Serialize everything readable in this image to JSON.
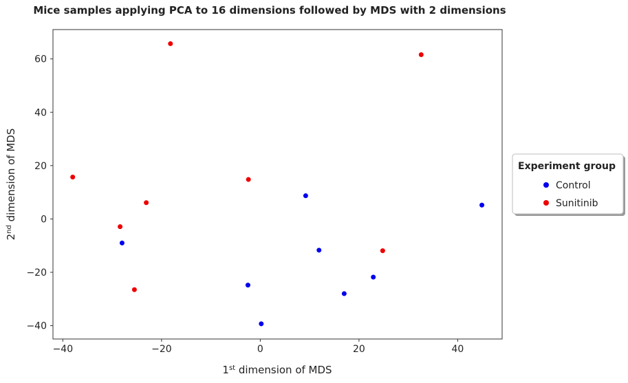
{
  "chart_data": {
    "type": "scatter",
    "title": "Mice samples applying PCA to 16 dimensions followed by MDS with 2 dimensions",
    "xlabel": {
      "prefix": "1",
      "sup": "st",
      "suffix": " dimension of MDS"
    },
    "ylabel": {
      "prefix": "2",
      "sup": "nd",
      "suffix": " dimension of MDS"
    },
    "xlim": [
      -42,
      49
    ],
    "ylim": [
      -45,
      71
    ],
    "xticks": [
      -40,
      -20,
      0,
      20,
      40
    ],
    "yticks": [
      -40,
      -20,
      0,
      20,
      40,
      60
    ],
    "xtick_labels": [
      "−40",
      "−20",
      "0",
      "20",
      "40"
    ],
    "ytick_labels": [
      "−40",
      "−20",
      "0",
      "20",
      "40",
      "60"
    ],
    "grid": false,
    "legend": {
      "title": "Experiment group",
      "placement": "center-right outside plot"
    },
    "series": [
      {
        "name": "Control",
        "color": "#0000ee",
        "points": [
          {
            "x": -28.0,
            "y": -9.0
          },
          {
            "x": -2.5,
            "y": -24.8
          },
          {
            "x": 0.2,
            "y": -39.3
          },
          {
            "x": 9.2,
            "y": 8.7
          },
          {
            "x": 11.9,
            "y": -11.7
          },
          {
            "x": 17.0,
            "y": -28.0
          },
          {
            "x": 22.9,
            "y": -21.8
          },
          {
            "x": 44.9,
            "y": 5.2
          }
        ]
      },
      {
        "name": "Sunitinib",
        "color": "#ee0000",
        "points": [
          {
            "x": -38.0,
            "y": 15.7
          },
          {
            "x": -28.4,
            "y": -2.9
          },
          {
            "x": -23.1,
            "y": 6.1
          },
          {
            "x": -25.5,
            "y": -26.5
          },
          {
            "x": -18.2,
            "y": 65.7
          },
          {
            "x": -2.4,
            "y": 14.8
          },
          {
            "x": 24.8,
            "y": -11.9
          },
          {
            "x": 32.6,
            "y": 61.6
          }
        ]
      }
    ]
  }
}
